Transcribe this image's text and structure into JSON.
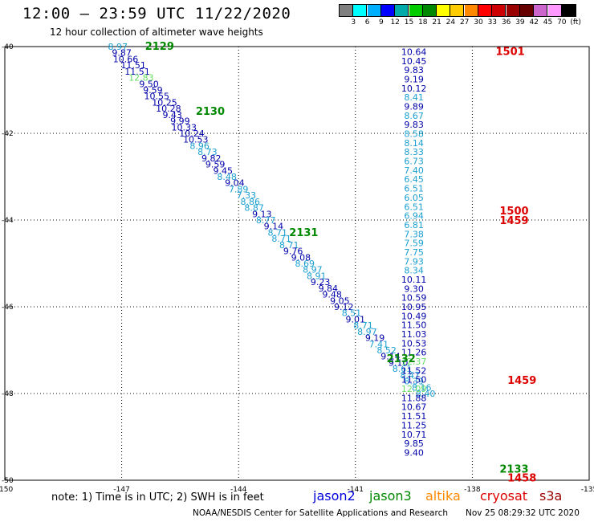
{
  "title": "12:00 – 23:59 UTC 11/22/2020",
  "subtitle": "12 hour collection of altimeter wave heights",
  "colorbar": {
    "colors": [
      "#808080",
      "#00ffff",
      "#00b0ff",
      "#0000ff",
      "#00aaaa",
      "#00cc00",
      "#008800",
      "#ffff00",
      "#ffcc00",
      "#ff8800",
      "#ff0000",
      "#cc0000",
      "#990000",
      "#660000",
      "#cc66cc",
      "#ff99ff",
      "#000000"
    ],
    "labels": [
      "3",
      "6",
      "9",
      "12",
      "15",
      "18",
      "21",
      "24",
      "27",
      "30",
      "33",
      "36",
      "39",
      "42",
      "45",
      "70",
      "(ft)"
    ]
  },
  "note": "note:  1) Time is in UTC;  2) SWH is in feet",
  "legend": [
    {
      "name": "jason2",
      "color": "#0000dd"
    },
    {
      "name": "jason3",
      "color": "#008800"
    },
    {
      "name": "altika",
      "color": "#ff8800"
    },
    {
      "name": "cryosat",
      "color": "#dd0000"
    },
    {
      "name": "s3a",
      "color": "#990000"
    }
  ],
  "credit": "NOAA/NESDIS Center for Satellite Applications and Research",
  "stamp": "Nov 25 08:29:32 UTC 2020",
  "chart_data": {
    "type": "scatter",
    "xlim": [
      -150,
      -135
    ],
    "ylim": [
      -50,
      -40
    ],
    "x_ticks": [
      "-150",
      "-147",
      "-144",
      "-141",
      "-138",
      "-135"
    ],
    "y_ticks": [
      "-40",
      "-42",
      "-44",
      "-46",
      "-48",
      "-50"
    ],
    "grid": "dotted",
    "level_colors": [
      {
        "max": 3,
        "color": "#808080"
      },
      {
        "max": 6,
        "color": "#00cccc"
      },
      {
        "max": 9,
        "color": "#1a9fd0"
      },
      {
        "max": 12,
        "color": "#0000aa"
      },
      {
        "max": 15,
        "color": "#66dd66"
      },
      {
        "max": 18,
        "color": "#22bb22"
      },
      {
        "max": 99,
        "color": "#008800"
      }
    ],
    "time_labels": [
      {
        "text": "2129",
        "lon": -146.4,
        "lat": -40.0,
        "color": "#008800"
      },
      {
        "text": "2130",
        "lon": -145.1,
        "lat": -41.5,
        "color": "#008800"
      },
      {
        "text": "2131",
        "lon": -142.7,
        "lat": -44.3,
        "color": "#008800"
      },
      {
        "text": "2132",
        "lon": -140.2,
        "lat": -47.2,
        "color": "#008800"
      },
      {
        "text": "2133",
        "lon": -137.3,
        "lat": -49.75,
        "color": "#008800"
      },
      {
        "text": "1501",
        "lon": -137.4,
        "lat": -40.12,
        "color": "#dd0000"
      },
      {
        "text": "1500",
        "lon": -137.3,
        "lat": -43.8,
        "color": "#dd0000"
      },
      {
        "text": "1459",
        "lon": -137.3,
        "lat": -44.02,
        "color": "#dd0000"
      },
      {
        "text": "1459",
        "lon": -137.1,
        "lat": -47.7,
        "color": "#dd0000"
      },
      {
        "text": "1458",
        "lon": -137.1,
        "lat": -49.95,
        "color": "#dd0000"
      }
    ],
    "series": [
      {
        "name": "jason3",
        "points": [
          {
            "lon": -147.1,
            "lat": -40.0,
            "v": "8.97"
          },
          {
            "lon": -147.0,
            "lat": -40.14,
            "v": "9.87"
          },
          {
            "lon": -146.9,
            "lat": -40.29,
            "v": "10.66"
          },
          {
            "lon": -146.7,
            "lat": -40.43,
            "v": "11.51"
          },
          {
            "lon": -146.6,
            "lat": -40.57,
            "v": "11.51"
          },
          {
            "lon": -146.5,
            "lat": -40.71,
            "v": "12.83"
          },
          {
            "lon": -146.3,
            "lat": -40.86,
            "v": "9.50"
          },
          {
            "lon": -146.2,
            "lat": -41.0,
            "v": "9.59"
          },
          {
            "lon": -146.1,
            "lat": -41.14,
            "v": "10.55"
          },
          {
            "lon": -145.9,
            "lat": -41.29,
            "v": "10.25"
          },
          {
            "lon": -145.8,
            "lat": -41.43,
            "v": "10.28"
          },
          {
            "lon": -145.7,
            "lat": -41.57,
            "v": "9.43"
          },
          {
            "lon": -145.5,
            "lat": -41.71,
            "v": "9.99"
          },
          {
            "lon": -145.4,
            "lat": -41.86,
            "v": "10.33"
          },
          {
            "lon": -145.2,
            "lat": -42.0,
            "v": "10.24"
          },
          {
            "lon": -145.1,
            "lat": -42.14,
            "v": "10.53"
          },
          {
            "lon": -145.0,
            "lat": -42.29,
            "v": "8.96"
          },
          {
            "lon": -144.8,
            "lat": -42.43,
            "v": "8.73"
          },
          {
            "lon": -144.7,
            "lat": -42.57,
            "v": "9.82"
          },
          {
            "lon": -144.6,
            "lat": -42.71,
            "v": "9.59"
          },
          {
            "lon": -144.4,
            "lat": -42.86,
            "v": "9.45"
          },
          {
            "lon": -144.3,
            "lat": -43.0,
            "v": "8.48"
          },
          {
            "lon": -144.1,
            "lat": -43.14,
            "v": "9.04"
          },
          {
            "lon": -144.0,
            "lat": -43.29,
            "v": "7.89"
          },
          {
            "lon": -143.8,
            "lat": -43.43,
            "v": "7.33"
          },
          {
            "lon": -143.7,
            "lat": -43.57,
            "v": "8.86"
          },
          {
            "lon": -143.6,
            "lat": -43.71,
            "v": "8.87"
          },
          {
            "lon": -143.4,
            "lat": -43.86,
            "v": "9.13"
          },
          {
            "lon": -143.3,
            "lat": -44.0,
            "v": "8.77"
          },
          {
            "lon": -143.1,
            "lat": -44.14,
            "v": "9.14"
          },
          {
            "lon": -143.0,
            "lat": -44.29,
            "v": "8.71"
          },
          {
            "lon": -142.9,
            "lat": -44.43,
            "v": "8.71"
          },
          {
            "lon": -142.7,
            "lat": -44.57,
            "v": "8.71"
          },
          {
            "lon": -142.6,
            "lat": -44.71,
            "v": "9.76"
          },
          {
            "lon": -142.4,
            "lat": -44.86,
            "v": "9.08"
          },
          {
            "lon": -142.3,
            "lat": -45.0,
            "v": "8.69"
          },
          {
            "lon": -142.1,
            "lat": -45.14,
            "v": "8.97"
          },
          {
            "lon": -142.0,
            "lat": -45.29,
            "v": "8.91"
          },
          {
            "lon": -141.9,
            "lat": -45.43,
            "v": "9.23"
          },
          {
            "lon": -141.7,
            "lat": -45.57,
            "v": "9.84"
          },
          {
            "lon": -141.6,
            "lat": -45.71,
            "v": "9.48"
          },
          {
            "lon": -141.4,
            "lat": -45.86,
            "v": "9.05"
          },
          {
            "lon": -141.3,
            "lat": -46.0,
            "v": "9.12"
          },
          {
            "lon": -141.1,
            "lat": -46.14,
            "v": "8.51"
          },
          {
            "lon": -141.0,
            "lat": -46.29,
            "v": "9.01"
          },
          {
            "lon": -140.8,
            "lat": -46.43,
            "v": "8.71"
          },
          {
            "lon": -140.7,
            "lat": -46.57,
            "v": "8.97"
          },
          {
            "lon": -140.5,
            "lat": -46.71,
            "v": "9.19"
          },
          {
            "lon": -140.4,
            "lat": -46.86,
            "v": "7.41"
          },
          {
            "lon": -140.2,
            "lat": -47.0,
            "v": "8.52"
          },
          {
            "lon": -140.1,
            "lat": -47.14,
            "v": "9.14"
          },
          {
            "lon": -139.9,
            "lat": -47.29,
            "v": "9.10"
          },
          {
            "lon": -139.8,
            "lat": -47.43,
            "v": "8.61"
          },
          {
            "lon": -139.6,
            "lat": -47.57,
            "v": "8.47"
          },
          {
            "lon": -139.5,
            "lat": -47.71,
            "v": "8.39"
          },
          {
            "lon": -139.3,
            "lat": -47.86,
            "v": "8.16"
          },
          {
            "lon": -139.2,
            "lat": -48.0,
            "v": "8.40"
          }
        ]
      },
      {
        "name": "cryosat",
        "points": [
          {
            "lon": -139.5,
            "lat": -40.12,
            "v": "10.64"
          },
          {
            "lon": -139.5,
            "lat": -40.33,
            "v": "10.45"
          },
          {
            "lon": -139.5,
            "lat": -40.54,
            "v": "9.83"
          },
          {
            "lon": -139.5,
            "lat": -40.75,
            "v": "9.19"
          },
          {
            "lon": -139.5,
            "lat": -40.96,
            "v": "10.12"
          },
          {
            "lon": -139.5,
            "lat": -41.17,
            "v": "8.41"
          },
          {
            "lon": -139.5,
            "lat": -41.38,
            "v": "9.89"
          },
          {
            "lon": -139.5,
            "lat": -41.59,
            "v": "8.67"
          },
          {
            "lon": -139.5,
            "lat": -41.8,
            "v": "9.83"
          },
          {
            "lon": -139.5,
            "lat": -42.01,
            "v": "8.58"
          },
          {
            "lon": -139.5,
            "lat": -42.22,
            "v": "8.14"
          },
          {
            "lon": -139.5,
            "lat": -42.43,
            "v": "8.33"
          },
          {
            "lon": -139.5,
            "lat": -42.64,
            "v": "6.73"
          },
          {
            "lon": -139.5,
            "lat": -42.85,
            "v": "7.40"
          },
          {
            "lon": -139.5,
            "lat": -43.06,
            "v": "6.45"
          },
          {
            "lon": -139.5,
            "lat": -43.27,
            "v": "6.51"
          },
          {
            "lon": -139.5,
            "lat": -43.48,
            "v": "6.05"
          },
          {
            "lon": -139.5,
            "lat": -43.69,
            "v": "6.51"
          },
          {
            "lon": -139.5,
            "lat": -43.9,
            "v": "6.94"
          },
          {
            "lon": -139.5,
            "lat": -44.11,
            "v": "6.81"
          },
          {
            "lon": -139.5,
            "lat": -44.32,
            "v": "7.38"
          },
          {
            "lon": -139.5,
            "lat": -44.53,
            "v": "7.59"
          },
          {
            "lon": -139.5,
            "lat": -44.74,
            "v": "7.75"
          },
          {
            "lon": -139.5,
            "lat": -44.95,
            "v": "7.93"
          },
          {
            "lon": -139.5,
            "lat": -45.16,
            "v": "8.34"
          },
          {
            "lon": -139.5,
            "lat": -45.37,
            "v": "10.11"
          },
          {
            "lon": -139.5,
            "lat": -45.58,
            "v": "9.30"
          },
          {
            "lon": -139.5,
            "lat": -45.79,
            "v": "10.59"
          },
          {
            "lon": -139.5,
            "lat": -46.0,
            "v": "10.95"
          },
          {
            "lon": -139.5,
            "lat": -46.21,
            "v": "10.49"
          },
          {
            "lon": -139.5,
            "lat": -46.42,
            "v": "11.50"
          },
          {
            "lon": -139.5,
            "lat": -46.63,
            "v": "11.03"
          },
          {
            "lon": -139.5,
            "lat": -46.84,
            "v": "10.53"
          },
          {
            "lon": -139.5,
            "lat": -47.05,
            "v": "11.26"
          },
          {
            "lon": -139.5,
            "lat": -47.26,
            "v": "12.37"
          },
          {
            "lon": -139.5,
            "lat": -47.47,
            "v": "11.52"
          },
          {
            "lon": -139.5,
            "lat": -47.68,
            "v": "11.50"
          },
          {
            "lon": -139.5,
            "lat": -47.89,
            "v": "12.09"
          },
          {
            "lon": -139.5,
            "lat": -48.1,
            "v": "11.88"
          },
          {
            "lon": -139.5,
            "lat": -48.31,
            "v": "10.67"
          },
          {
            "lon": -139.5,
            "lat": -48.52,
            "v": "11.51"
          },
          {
            "lon": -139.5,
            "lat": -48.73,
            "v": "11.25"
          },
          {
            "lon": -139.5,
            "lat": -48.94,
            "v": "10.71"
          },
          {
            "lon": -139.5,
            "lat": -49.15,
            "v": "9.85"
          },
          {
            "lon": -139.5,
            "lat": -49.36,
            "v": "9.40"
          }
        ]
      }
    ]
  }
}
